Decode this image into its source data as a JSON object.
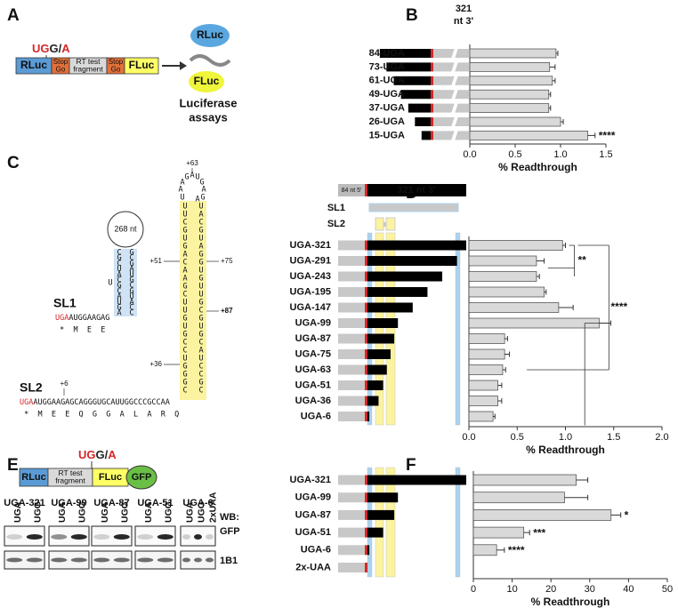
{
  "panel_labels": [
    "A",
    "B",
    "C",
    "D",
    "E",
    "F"
  ],
  "panel_a": {
    "codon": [
      "UG",
      "G/",
      "A"
    ],
    "construct": [
      [
        "RLuc"
      ],
      [
        "Stop",
        "Go"
      ],
      [
        "RT test",
        "fragment"
      ],
      [
        "Stop",
        "Go"
      ],
      [
        "FLuc"
      ]
    ],
    "products": [
      "RLuc",
      "FLuc"
    ],
    "caption": [
      "Luciferase",
      "assays"
    ]
  },
  "panel_c": {
    "sl1": {
      "loop": "268 nt",
      "left": [
        "C",
        "G",
        "C",
        "U",
        "A",
        "C",
        "G",
        "C",
        "A",
        "U",
        "G",
        "A"
      ],
      "bulge": "U",
      "right": [
        "G",
        "C",
        "G",
        "A",
        "U",
        "G",
        "C",
        "G",
        "U",
        "A",
        "C",
        "C"
      ],
      "name": "SL1",
      "seq": [
        "UGA",
        "AUGGAAGAG"
      ],
      "protein": [
        "*",
        "M",
        "E",
        "E"
      ]
    },
    "sl2": {
      "loop": [
        "U",
        "A",
        "A",
        "G",
        "A",
        "U",
        "G",
        "A",
        "G",
        "A"
      ],
      "left": [
        "U",
        "U",
        "C",
        "G",
        "U",
        "G",
        "A",
        "C",
        "A",
        "A",
        "G",
        "C",
        "U",
        "U",
        "G",
        "U",
        "G",
        "C",
        "C",
        "U",
        "G",
        "G",
        "G",
        "C"
      ],
      "right": [
        "U",
        "A",
        "C",
        "G",
        "U",
        "A",
        "G",
        "G",
        "U",
        "G",
        "U",
        "U",
        "G",
        "C",
        "G",
        "U",
        "G",
        "C",
        "A",
        "U",
        "C",
        "C",
        "G",
        "C"
      ],
      "markers": [
        "+63",
        "+51",
        "+75",
        "+87",
        "+36",
        "+6"
      ],
      "name": "SL2",
      "seq": [
        "UGA",
        "AUGGAAGAGCAGGGUGCAUUGGCCCGCCAA"
      ],
      "protein": [
        "*",
        "M",
        "E",
        "E",
        "Q",
        "G",
        "G",
        "A",
        "L",
        "A",
        "R",
        "Q"
      ]
    }
  },
  "panel_e": {
    "codon": [
      "UG",
      "G/",
      "A"
    ],
    "construct": [
      [
        "RLuc"
      ],
      [
        "RT test",
        "fragment"
      ],
      [
        "FLuc"
      ],
      [
        "GFP"
      ]
    ],
    "groups": [
      {
        "name": "UGA-321",
        "lanes": [
          "UGA",
          "UGG"
        ]
      },
      {
        "name": "UGA-99",
        "lanes": [
          "UGA",
          "UGG"
        ]
      },
      {
        "name": "UGA-87",
        "lanes": [
          "UGA",
          "UGG"
        ]
      },
      {
        "name": "UGA-51",
        "lanes": [
          "UGA",
          "UGG"
        ]
      },
      {
        "name": "UGA-6",
        "lanes": [
          "UGA",
          "UGG",
          "2xUAA"
        ]
      }
    ],
    "blot_labels": [
      "WB:",
      "GFP",
      "1B1"
    ]
  },
  "chart_data": [
    {
      "type": "bar",
      "orientation": "horizontal",
      "categories": [
        "84-UGA",
        "73-UGA",
        "61-UGA",
        "49-UGA",
        "37-UGA",
        "26-UGA",
        "15-UGA"
      ],
      "values": [
        0.95,
        0.88,
        0.91,
        0.87,
        0.87,
        1.0,
        1.3
      ],
      "errors": [
        0.02,
        0.06,
        0.03,
        0.02,
        0.02,
        0.03,
        0.08
      ],
      "significance": [
        null,
        null,
        null,
        null,
        null,
        null,
        "****"
      ],
      "color": "#d9d9d9",
      "xlim": [
        0,
        1.5
      ],
      "xticks": [
        {
          "value": 0,
          "label": "0.0"
        },
        0.5,
        {
          "value": 1,
          "label": "1.0"
        },
        1.5
      ],
      "xlabel": "% Readthrough",
      "schematic": {
        "header": [
          "321",
          "nt 3'"
        ],
        "fragment_nt": [
          84,
          73,
          61,
          49,
          37,
          26,
          15
        ]
      }
    },
    {
      "type": "bar",
      "orientation": "horizontal",
      "categories": [
        "UGA-321",
        "UGA-291",
        "UGA-243",
        "UGA-195",
        "UGA-147",
        "UGA-99",
        "UGA-87",
        "UGA-75",
        "UGA-63",
        "UGA-51",
        "UGA-36",
        "UGA-6"
      ],
      "values": [
        0.97,
        0.7,
        0.7,
        0.78,
        0.93,
        1.35,
        0.37,
        0.37,
        0.35,
        0.3,
        0.3,
        0.25
      ],
      "errors": [
        0.03,
        0.08,
        0.03,
        0.02,
        0.15,
        0.12,
        0.03,
        0.05,
        0.03,
        0.04,
        0.04,
        0.02
      ],
      "comparisons": [
        "**",
        "****"
      ],
      "color": "#d9d9d9",
      "xlim": [
        0,
        2
      ],
      "xticks": [
        {
          "value": 0,
          "label": "0.0"
        },
        0.5,
        {
          "value": 1,
          "label": "1.0"
        },
        1.5,
        {
          "value": 2,
          "label": "2.0"
        }
      ],
      "xlabel": "% Readthrough",
      "schematic": {
        "header": [
          "84 nt 5'",
          "321 nt 3'"
        ],
        "elements": [
          "SL1",
          "SL2"
        ],
        "fragment_nt": [
          321,
          291,
          243,
          195,
          147,
          99,
          87,
          75,
          63,
          51,
          36,
          6
        ]
      }
    },
    {
      "type": "bar",
      "orientation": "horizontal",
      "categories": [
        "UGA-321",
        "UGA-99",
        "UGA-87",
        "UGA-51",
        "UGA-6",
        "2x-UAA"
      ],
      "values": [
        26.5,
        23.5,
        35.5,
        13,
        6,
        null
      ],
      "errors": [
        3,
        6,
        2.5,
        1.5,
        2,
        null
      ],
      "significance": [
        null,
        null,
        "*",
        "***",
        "****",
        null
      ],
      "color": "#d9d9d9",
      "xlim": [
        0,
        50
      ],
      "xticks": [
        0,
        10,
        20,
        30,
        40,
        50
      ],
      "xlabel": "% Readthrough",
      "schematic": {
        "fragment_nt": [
          321,
          99,
          87,
          51,
          6,
          null
        ]
      }
    }
  ]
}
